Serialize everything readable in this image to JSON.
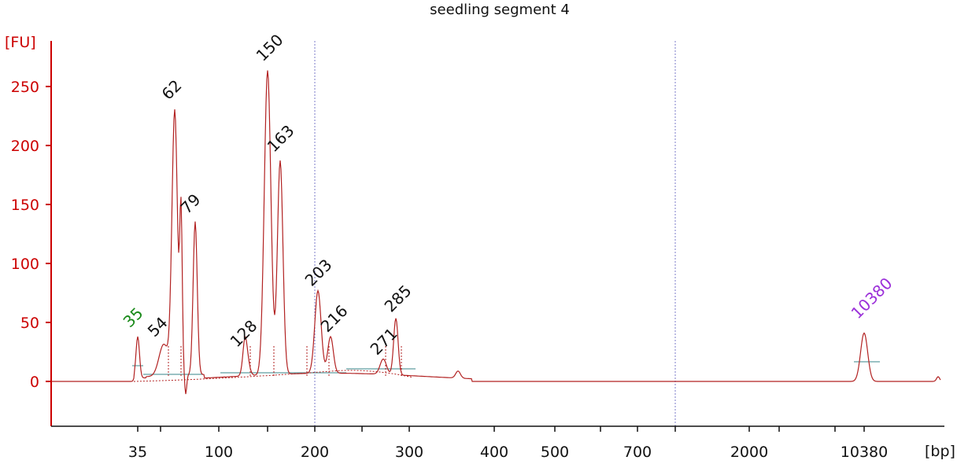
{
  "chart_data": {
    "type": "line",
    "title": "seedling segment 4",
    "ylabel": "[FU]",
    "xlabel": "[bp]",
    "ylim": [
      -40,
      290
    ],
    "yticks": [
      0,
      50,
      100,
      150,
      200,
      250
    ],
    "xtick_labels": [
      "35",
      "100",
      "200",
      "300",
      "400",
      "500",
      "700",
      "2000",
      "10380"
    ],
    "grid": false,
    "legend": "none",
    "colors": {
      "trace": "#b22222",
      "axis": "#cc0000",
      "ytick_label": "#cc0000",
      "baseline": "#5f9ea0",
      "marker_line": "#7b7bc8",
      "lower_marker_label": "#1a8a1a",
      "upper_marker_label": "#9b30d9",
      "peak_label": "#111111"
    },
    "peaks": [
      {
        "label": "35",
        "bp": 35,
        "fu": 37,
        "kind": "lower-marker"
      },
      {
        "label": "54",
        "bp": 54,
        "fu": 29,
        "kind": "peak"
      },
      {
        "label": "62",
        "bp": 62,
        "fu": 226,
        "kind": "peak"
      },
      {
        "label": "79",
        "bp": 79,
        "fu": 132,
        "kind": "peak"
      },
      {
        "label": "128",
        "bp": 128,
        "fu": 19,
        "kind": "peak"
      },
      {
        "label": "150",
        "bp": 150,
        "fu": 260,
        "kind": "peak"
      },
      {
        "label": "163",
        "bp": 163,
        "fu": 183,
        "kind": "peak"
      },
      {
        "label": "203",
        "bp": 203,
        "fu": 72,
        "kind": "peak"
      },
      {
        "label": "216",
        "bp": 216,
        "fu": 33,
        "kind": "peak"
      },
      {
        "label": "271",
        "bp": 271,
        "fu": 15,
        "kind": "peak"
      },
      {
        "label": "285",
        "bp": 285,
        "fu": 50,
        "kind": "peak"
      },
      {
        "label": "10380",
        "bp": 10380,
        "fu": 43,
        "kind": "upper-marker"
      }
    ],
    "marker_lines_bp": [
      200,
      1000
    ]
  }
}
